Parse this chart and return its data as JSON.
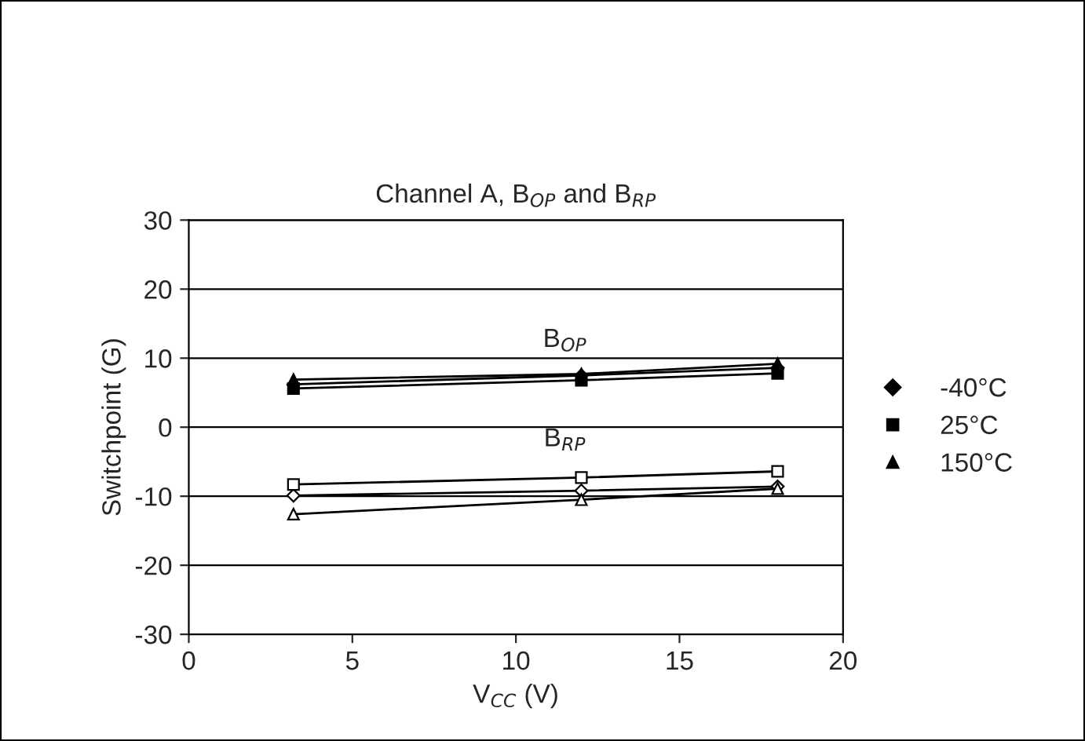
{
  "chart_data": {
    "type": "line",
    "title": "Channel A, B$_{OP}$ and B$_{RP}$",
    "xlabel": "V$_{CC}$ (V)",
    "ylabel": "Switchpoint (G)",
    "x": [
      3.2,
      12,
      18
    ],
    "series": [
      {
        "name": "-40°C",
        "color": "#000000",
        "marker": "diamond",
        "values": [
          6.2,
          7.5,
          8.6
        ]
      },
      {
        "name": "25°C",
        "color": "#000000",
        "marker": "square",
        "values": [
          5.6,
          6.8,
          7.8
        ]
      },
      {
        "name": "150°C",
        "color": "#000000",
        "marker": "triangle",
        "values": [
          6.9,
          7.7,
          9.2
        ]
      },
      {
        "color": "#000000",
        "marker": "diamond",
        "values": [
          -9.9,
          -9.2,
          -8.6
        ]
      },
      {
        "color": "#000000",
        "marker": "square",
        "values": [
          -8.3,
          -7.3,
          -6.4
        ]
      },
      {
        "color": "#000000",
        "marker": "triangle",
        "values": [
          -12.6,
          -10.5,
          -8.9
        ]
      }
    ],
    "annotations": [
      "B$_{OP}$",
      "B$_{RP}$"
    ],
    "xlim": [
      0,
      20
    ],
    "xticks": [
      0,
      5,
      10,
      15,
      20
    ],
    "ylim": [
      -30,
      30
    ],
    "yticks": [
      -30,
      -20,
      -10,
      0,
      10,
      20,
      30
    ],
    "grid": "y",
    "legend": "right",
    "line_style": "solid"
  }
}
